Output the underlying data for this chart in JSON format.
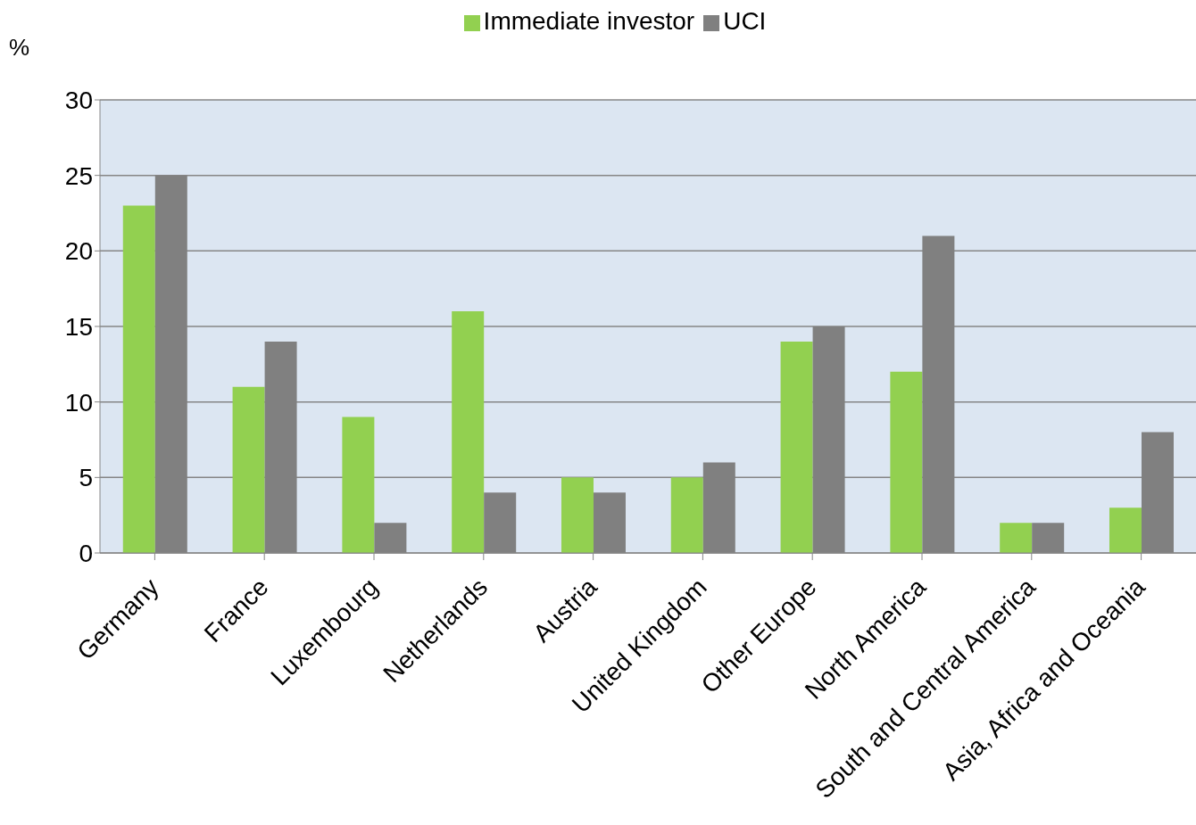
{
  "chart_data": {
    "type": "bar",
    "ylabel": "%",
    "categories": [
      "Germany",
      "France",
      "Luxembourg",
      "Netherlands",
      "Austria",
      "United Kingdom",
      "Other Europe",
      "North America",
      "South and Central America",
      "Asia, Africa and Oceania"
    ],
    "series": [
      {
        "name": "Immediate investor",
        "color": "#92d050",
        "values": [
          23,
          11,
          9,
          16,
          5,
          5,
          14,
          12,
          2,
          3
        ]
      },
      {
        "name": "UCI",
        "color": "#808080",
        "values": [
          25,
          14,
          2,
          4,
          4,
          6,
          15,
          21,
          2,
          8
        ]
      }
    ],
    "ylim": [
      0,
      30
    ],
    "yticks": [
      0,
      5,
      10,
      15,
      20,
      25,
      30
    ],
    "grid": "y",
    "legend": "top"
  }
}
